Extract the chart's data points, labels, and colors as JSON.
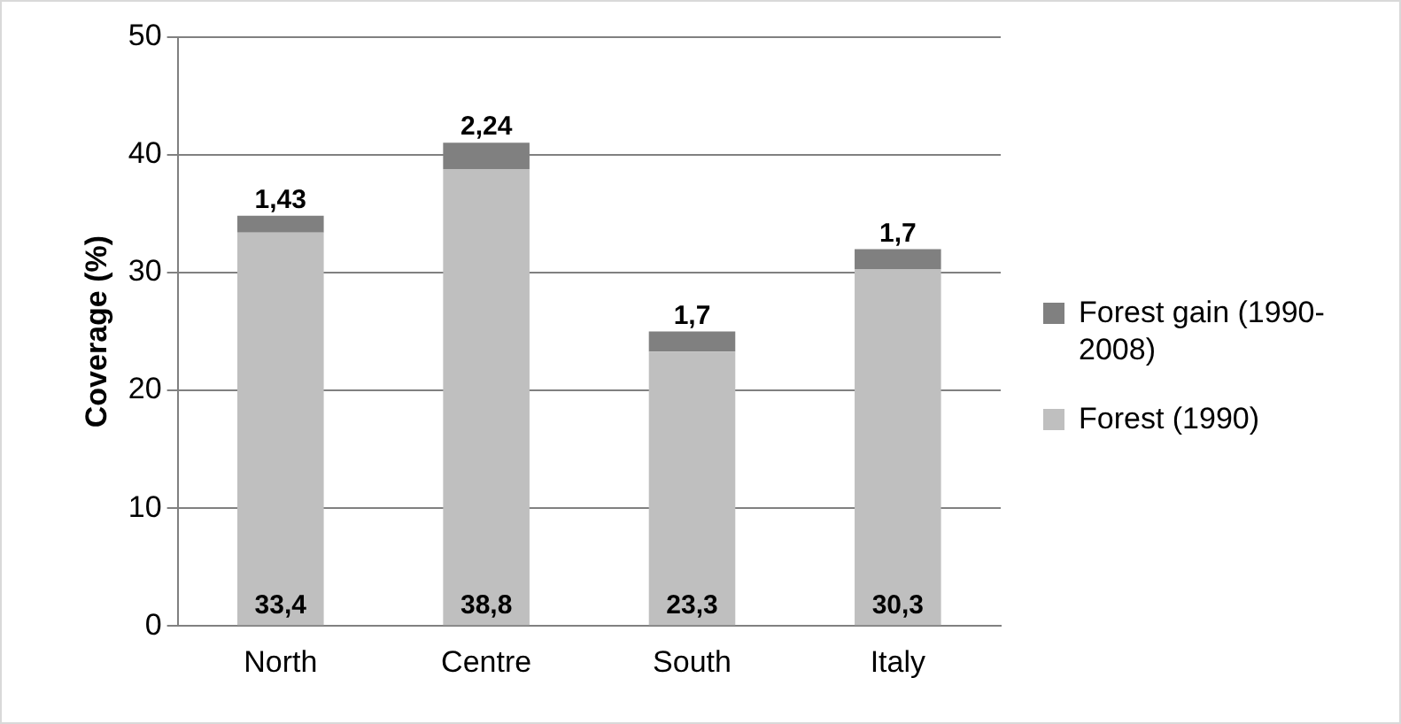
{
  "chart_data": {
    "type": "bar",
    "stacked": true,
    "ylabel": "Coverage (%)",
    "categories": [
      "North",
      "Centre",
      "South",
      "Italy"
    ],
    "series": [
      {
        "name": "Forest (1990)",
        "color": "#bfbfbf",
        "values": [
          33.4,
          38.8,
          23.3,
          30.3
        ],
        "value_labels": [
          "33,4",
          "38,8",
          "23,3",
          "30,3"
        ]
      },
      {
        "name": "Forest gain (1990-2008)",
        "color": "#808080",
        "values": [
          1.43,
          2.24,
          1.7,
          1.7
        ],
        "value_labels": [
          "1,43",
          "2,24",
          "1,7",
          "1,7"
        ]
      }
    ],
    "ylim": [
      0,
      50
    ],
    "yticks": [
      0,
      10,
      20,
      30,
      40,
      50
    ],
    "grid": "y",
    "legend": "right"
  }
}
